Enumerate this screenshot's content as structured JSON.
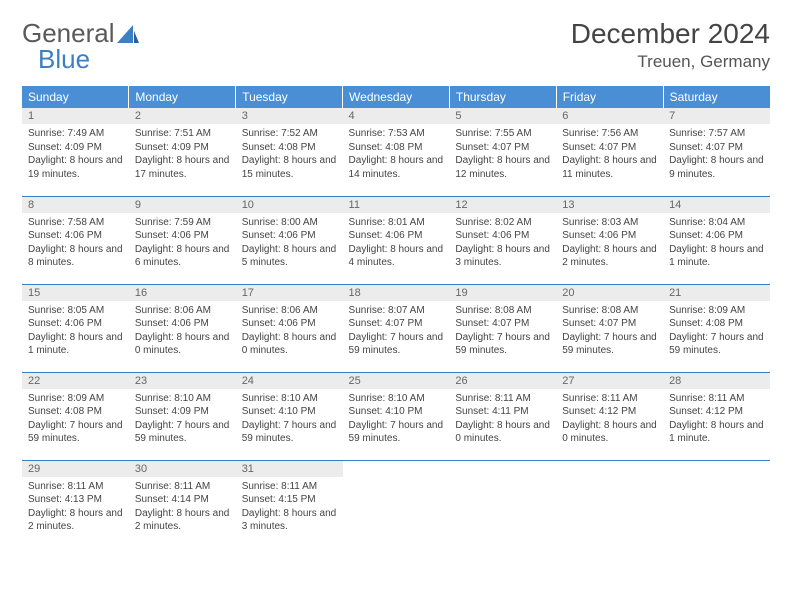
{
  "brand": {
    "part1": "General",
    "part2": "Blue"
  },
  "title": "December 2024",
  "location": "Treuen, Germany",
  "colors": {
    "header_bg": "#4a8fd6",
    "header_text": "#ffffff",
    "row_border": "#3b7fc4",
    "daynum_bg": "#ececec",
    "text": "#444444",
    "brand_gray": "#5a5a5a",
    "brand_blue": "#3b7fc4"
  },
  "weekdays": [
    "Sunday",
    "Monday",
    "Tuesday",
    "Wednesday",
    "Thursday",
    "Friday",
    "Saturday"
  ],
  "weeks": [
    [
      {
        "n": "1",
        "sr": "7:49 AM",
        "ss": "4:09 PM",
        "dl": "8 hours and 19 minutes."
      },
      {
        "n": "2",
        "sr": "7:51 AM",
        "ss": "4:09 PM",
        "dl": "8 hours and 17 minutes."
      },
      {
        "n": "3",
        "sr": "7:52 AM",
        "ss": "4:08 PM",
        "dl": "8 hours and 15 minutes."
      },
      {
        "n": "4",
        "sr": "7:53 AM",
        "ss": "4:08 PM",
        "dl": "8 hours and 14 minutes."
      },
      {
        "n": "5",
        "sr": "7:55 AM",
        "ss": "4:07 PM",
        "dl": "8 hours and 12 minutes."
      },
      {
        "n": "6",
        "sr": "7:56 AM",
        "ss": "4:07 PM",
        "dl": "8 hours and 11 minutes."
      },
      {
        "n": "7",
        "sr": "7:57 AM",
        "ss": "4:07 PM",
        "dl": "8 hours and 9 minutes."
      }
    ],
    [
      {
        "n": "8",
        "sr": "7:58 AM",
        "ss": "4:06 PM",
        "dl": "8 hours and 8 minutes."
      },
      {
        "n": "9",
        "sr": "7:59 AM",
        "ss": "4:06 PM",
        "dl": "8 hours and 6 minutes."
      },
      {
        "n": "10",
        "sr": "8:00 AM",
        "ss": "4:06 PM",
        "dl": "8 hours and 5 minutes."
      },
      {
        "n": "11",
        "sr": "8:01 AM",
        "ss": "4:06 PM",
        "dl": "8 hours and 4 minutes."
      },
      {
        "n": "12",
        "sr": "8:02 AM",
        "ss": "4:06 PM",
        "dl": "8 hours and 3 minutes."
      },
      {
        "n": "13",
        "sr": "8:03 AM",
        "ss": "4:06 PM",
        "dl": "8 hours and 2 minutes."
      },
      {
        "n": "14",
        "sr": "8:04 AM",
        "ss": "4:06 PM",
        "dl": "8 hours and 1 minute."
      }
    ],
    [
      {
        "n": "15",
        "sr": "8:05 AM",
        "ss": "4:06 PM",
        "dl": "8 hours and 1 minute."
      },
      {
        "n": "16",
        "sr": "8:06 AM",
        "ss": "4:06 PM",
        "dl": "8 hours and 0 minutes."
      },
      {
        "n": "17",
        "sr": "8:06 AM",
        "ss": "4:06 PM",
        "dl": "8 hours and 0 minutes."
      },
      {
        "n": "18",
        "sr": "8:07 AM",
        "ss": "4:07 PM",
        "dl": "7 hours and 59 minutes."
      },
      {
        "n": "19",
        "sr": "8:08 AM",
        "ss": "4:07 PM",
        "dl": "7 hours and 59 minutes."
      },
      {
        "n": "20",
        "sr": "8:08 AM",
        "ss": "4:07 PM",
        "dl": "7 hours and 59 minutes."
      },
      {
        "n": "21",
        "sr": "8:09 AM",
        "ss": "4:08 PM",
        "dl": "7 hours and 59 minutes."
      }
    ],
    [
      {
        "n": "22",
        "sr": "8:09 AM",
        "ss": "4:08 PM",
        "dl": "7 hours and 59 minutes."
      },
      {
        "n": "23",
        "sr": "8:10 AM",
        "ss": "4:09 PM",
        "dl": "7 hours and 59 minutes."
      },
      {
        "n": "24",
        "sr": "8:10 AM",
        "ss": "4:10 PM",
        "dl": "7 hours and 59 minutes."
      },
      {
        "n": "25",
        "sr": "8:10 AM",
        "ss": "4:10 PM",
        "dl": "7 hours and 59 minutes."
      },
      {
        "n": "26",
        "sr": "8:11 AM",
        "ss": "4:11 PM",
        "dl": "8 hours and 0 minutes."
      },
      {
        "n": "27",
        "sr": "8:11 AM",
        "ss": "4:12 PM",
        "dl": "8 hours and 0 minutes."
      },
      {
        "n": "28",
        "sr": "8:11 AM",
        "ss": "4:12 PM",
        "dl": "8 hours and 1 minute."
      }
    ],
    [
      {
        "n": "29",
        "sr": "8:11 AM",
        "ss": "4:13 PM",
        "dl": "8 hours and 2 minutes."
      },
      {
        "n": "30",
        "sr": "8:11 AM",
        "ss": "4:14 PM",
        "dl": "8 hours and 2 minutes."
      },
      {
        "n": "31",
        "sr": "8:11 AM",
        "ss": "4:15 PM",
        "dl": "8 hours and 3 minutes."
      },
      null,
      null,
      null,
      null
    ]
  ],
  "labels": {
    "sunrise": "Sunrise:",
    "sunset": "Sunset:",
    "daylight": "Daylight:"
  }
}
